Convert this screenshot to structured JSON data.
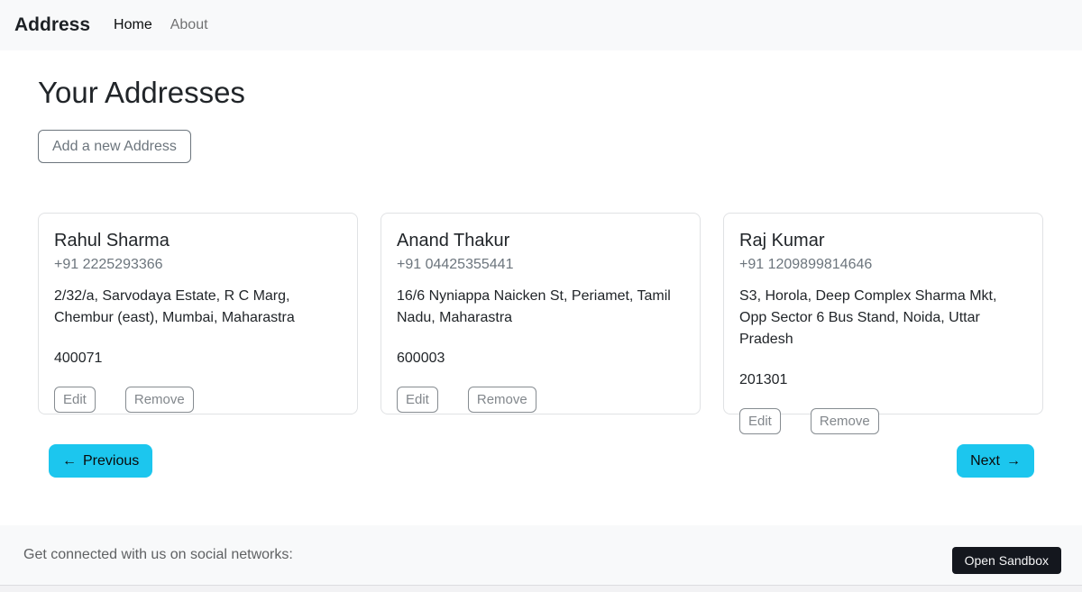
{
  "navbar": {
    "brand": "Address",
    "links": [
      {
        "label": "Home"
      },
      {
        "label": "About"
      }
    ]
  },
  "page": {
    "title": "Your Addresses",
    "add_button_label": "Add a new Address"
  },
  "card_actions": {
    "edit": "Edit",
    "remove": "Remove"
  },
  "addresses": [
    {
      "name": "Rahul Sharma",
      "phone": "+91 2225293366",
      "address": "2/32/a, Sarvodaya Estate, R C Marg, Chembur (east), Mumbai, Maharastra",
      "pincode": "400071"
    },
    {
      "name": "Anand Thakur",
      "phone": "+91 04425355441",
      "address": "16/6 Nyniappa Naicken St, Periamet, Tamil Nadu, Maharastra",
      "pincode": "600003"
    },
    {
      "name": "Raj Kumar",
      "phone": "+91 1209899814646",
      "address": "S3, Horola, Deep Complex Sharma Mkt, Opp Sector 6 Bus Stand, Noida, Uttar Pradesh",
      "pincode": "201301"
    }
  ],
  "pagination": {
    "previous_arrow": "←",
    "previous_label": "Previous",
    "next_label": "Next",
    "next_arrow": "→"
  },
  "footer": {
    "social_text": "Get connected with us on social networks:",
    "open_sandbox_label": "Open Sandbox"
  },
  "colors": {
    "accent_cyan": "#1cc6ee",
    "navbar_bg": "#f8f9fa",
    "dark_button_bg": "#14171e"
  }
}
